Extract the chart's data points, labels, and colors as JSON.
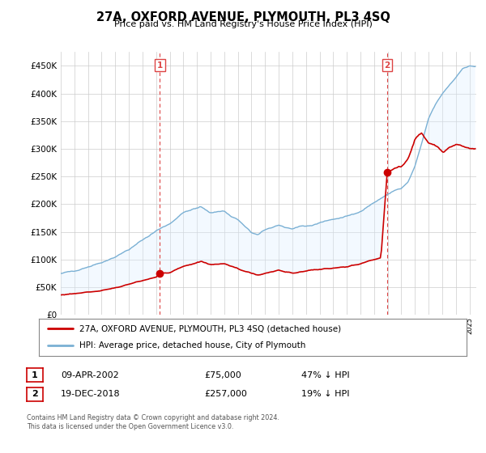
{
  "title": "27A, OXFORD AVENUE, PLYMOUTH, PL3 4SQ",
  "subtitle": "Price paid vs. HM Land Registry's House Price Index (HPI)",
  "footnote": "Contains HM Land Registry data © Crown copyright and database right 2024.\nThis data is licensed under the Open Government Licence v3.0.",
  "legend_line1": "27A, OXFORD AVENUE, PLYMOUTH, PL3 4SQ (detached house)",
  "legend_line2": "HPI: Average price, detached house, City of Plymouth",
  "table_row1": [
    "1",
    "09-APR-2002",
    "£75,000",
    "47% ↓ HPI"
  ],
  "table_row2": [
    "2",
    "19-DEC-2018",
    "£257,000",
    "19% ↓ HPI"
  ],
  "price_color": "#cc0000",
  "hpi_color": "#7ab0d4",
  "hpi_fill_color": "#ddeeff",
  "vline_color": "#dd4444",
  "background_color": "#ffffff",
  "grid_color": "#cccccc",
  "ylim": [
    0,
    475000
  ],
  "yticks": [
    0,
    50000,
    100000,
    150000,
    200000,
    250000,
    300000,
    350000,
    400000,
    450000
  ],
  "sale1_x": 2002.27,
  "sale1_price": 75000,
  "sale2_x": 2018.96,
  "sale2_price": 257000,
  "xmin": 1995.0,
  "xmax": 2025.5
}
